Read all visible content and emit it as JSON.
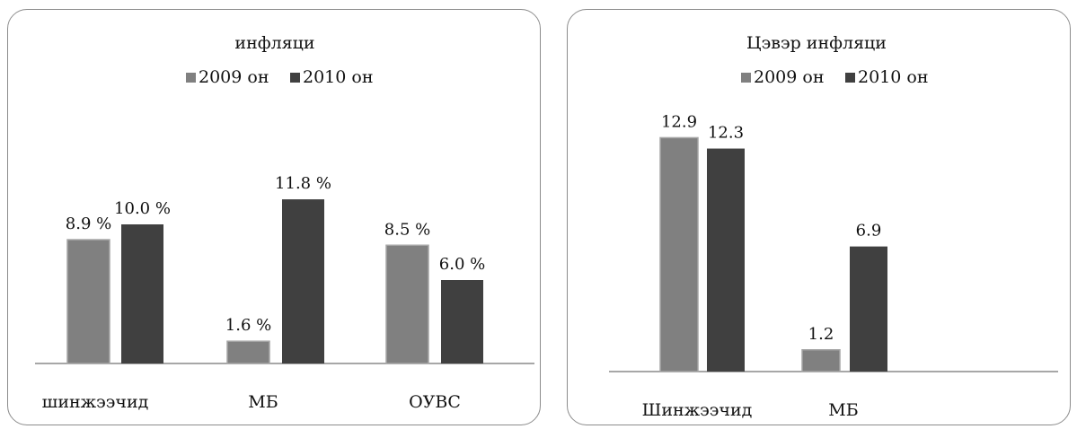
{
  "chart_data": [
    {
      "type": "bar",
      "title": "инфляци",
      "categories": [
        "шинжээчид",
        "МБ",
        "ОУВС"
      ],
      "series": [
        {
          "name": "2009 он",
          "values": [
            8.9,
            1.6,
            8.5
          ],
          "labels": [
            "8.9 %",
            "1.6 %",
            "8.5 %"
          ],
          "color": "#808080"
        },
        {
          "name": "2010 он",
          "values": [
            10.0,
            11.8,
            6.0
          ],
          "labels": [
            "10.0 %",
            "11.8 %",
            "6.0 %"
          ],
          "color": "#404040"
        }
      ],
      "legend_position": "top",
      "grid": false
    },
    {
      "type": "bar",
      "title": "Цэвэр инфляци",
      "categories": [
        "Шинжээчид",
        "МБ",
        ""
      ],
      "series": [
        {
          "name": "2009 он",
          "values": [
            12.9,
            1.2,
            null
          ],
          "labels": [
            "12.9",
            "1.2",
            ""
          ],
          "color": "#808080"
        },
        {
          "name": "2010 он",
          "values": [
            12.3,
            6.9,
            null
          ],
          "labels": [
            "12.3",
            "6.9",
            ""
          ],
          "color": "#404040"
        }
      ],
      "legend_position": "top",
      "grid": false
    }
  ]
}
